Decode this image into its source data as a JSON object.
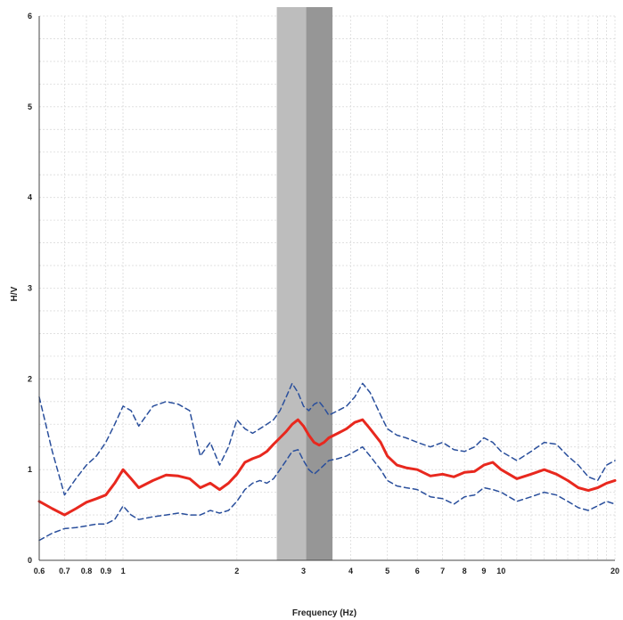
{
  "chart_data": {
    "type": "line",
    "xscale": "log",
    "xlabel": "Frequency (Hz)",
    "ylabel": "H/V",
    "xlim": [
      0.6,
      20
    ],
    "ylim": [
      0,
      6
    ],
    "grid": true,
    "xticks": [
      {
        "value": 0.6,
        "label": "0.6"
      },
      {
        "value": 0.7,
        "label": "0.7"
      },
      {
        "value": 0.8,
        "label": "0.8"
      },
      {
        "value": 0.9,
        "label": "0.9"
      },
      {
        "value": 1,
        "label": "1"
      },
      {
        "value": 2,
        "label": "2"
      },
      {
        "value": 3,
        "label": "3"
      },
      {
        "value": 4,
        "label": "4"
      },
      {
        "value": 5,
        "label": "5"
      },
      {
        "value": 6,
        "label": "6"
      },
      {
        "value": 7,
        "label": "7"
      },
      {
        "value": 8,
        "label": "8"
      },
      {
        "value": 9,
        "label": "9"
      },
      {
        "value": 10,
        "label": "10"
      },
      {
        "value": 20,
        "label": "20"
      }
    ],
    "yticks": [
      {
        "value": 0,
        "label": "0"
      },
      {
        "value": 1,
        "label": "1"
      },
      {
        "value": 2,
        "label": "2"
      },
      {
        "value": 3,
        "label": "3"
      },
      {
        "value": 4,
        "label": "4"
      },
      {
        "value": 5,
        "label": "5"
      },
      {
        "value": 6,
        "label": "6"
      }
    ],
    "bands": [
      {
        "x0": 2.55,
        "x1": 3.05,
        "color": "#bdbdbd"
      },
      {
        "x0": 3.05,
        "x1": 3.58,
        "color": "#969696"
      }
    ],
    "series": [
      {
        "style": "solid",
        "color": "#e8281e",
        "x": [
          0.6,
          0.65,
          0.7,
          0.75,
          0.8,
          0.85,
          0.9,
          0.95,
          1.0,
          1.05,
          1.1,
          1.2,
          1.3,
          1.4,
          1.5,
          1.6,
          1.7,
          1.8,
          1.9,
          2.0,
          2.1,
          2.2,
          2.3,
          2.4,
          2.5,
          2.6,
          2.7,
          2.8,
          2.9,
          3.0,
          3.1,
          3.2,
          3.3,
          3.4,
          3.5,
          3.7,
          3.9,
          4.1,
          4.3,
          4.5,
          4.8,
          5.0,
          5.3,
          5.6,
          6.0,
          6.5,
          7.0,
          7.5,
          8.0,
          8.5,
          9.0,
          9.5,
          10,
          11,
          12,
          13,
          14,
          15,
          16,
          17,
          18,
          19,
          20
        ],
        "y": [
          0.65,
          0.57,
          0.5,
          0.57,
          0.64,
          0.68,
          0.72,
          0.85,
          1.0,
          0.9,
          0.8,
          0.88,
          0.94,
          0.93,
          0.9,
          0.8,
          0.85,
          0.78,
          0.85,
          0.95,
          1.08,
          1.12,
          1.15,
          1.2,
          1.28,
          1.35,
          1.42,
          1.5,
          1.55,
          1.48,
          1.38,
          1.3,
          1.27,
          1.3,
          1.35,
          1.4,
          1.45,
          1.52,
          1.55,
          1.45,
          1.3,
          1.15,
          1.05,
          1.02,
          1.0,
          0.93,
          0.95,
          0.92,
          0.97,
          0.98,
          1.05,
          1.08,
          1.0,
          0.9,
          0.95,
          1.0,
          0.95,
          0.88,
          0.8,
          0.77,
          0.8,
          0.85,
          0.88
        ]
      },
      {
        "style": "dashed",
        "color": "#2a4f9c",
        "x": [
          0.6,
          0.65,
          0.7,
          0.75,
          0.8,
          0.85,
          0.9,
          0.95,
          1.0,
          1.05,
          1.1,
          1.2,
          1.3,
          1.4,
          1.5,
          1.6,
          1.7,
          1.8,
          1.9,
          2.0,
          2.1,
          2.2,
          2.3,
          2.4,
          2.5,
          2.6,
          2.7,
          2.8,
          2.9,
          3.0,
          3.1,
          3.2,
          3.3,
          3.4,
          3.5,
          3.7,
          3.9,
          4.1,
          4.3,
          4.5,
          4.8,
          5.0,
          5.3,
          5.6,
          6.0,
          6.5,
          7.0,
          7.5,
          8.0,
          8.5,
          9.0,
          9.5,
          10,
          11,
          12,
          13,
          14,
          15,
          16,
          17,
          18,
          19,
          20
        ],
        "y": [
          1.8,
          1.2,
          0.72,
          0.9,
          1.05,
          1.15,
          1.3,
          1.5,
          1.7,
          1.65,
          1.48,
          1.7,
          1.75,
          1.72,
          1.65,
          1.15,
          1.3,
          1.05,
          1.25,
          1.55,
          1.45,
          1.4,
          1.45,
          1.5,
          1.55,
          1.65,
          1.8,
          1.95,
          1.85,
          1.7,
          1.65,
          1.72,
          1.75,
          1.68,
          1.6,
          1.65,
          1.7,
          1.8,
          1.95,
          1.85,
          1.6,
          1.45,
          1.38,
          1.35,
          1.3,
          1.25,
          1.3,
          1.22,
          1.2,
          1.25,
          1.35,
          1.3,
          1.2,
          1.1,
          1.2,
          1.3,
          1.28,
          1.15,
          1.05,
          0.92,
          0.88,
          1.05,
          1.1
        ]
      },
      {
        "style": "dashed",
        "color": "#2a4f9c",
        "x": [
          0.6,
          0.65,
          0.7,
          0.75,
          0.8,
          0.85,
          0.9,
          0.95,
          1.0,
          1.05,
          1.1,
          1.2,
          1.3,
          1.4,
          1.5,
          1.6,
          1.7,
          1.8,
          1.9,
          2.0,
          2.1,
          2.2,
          2.3,
          2.4,
          2.5,
          2.6,
          2.7,
          2.8,
          2.9,
          3.0,
          3.1,
          3.2,
          3.3,
          3.4,
          3.5,
          3.7,
          3.9,
          4.1,
          4.3,
          4.5,
          4.8,
          5.0,
          5.3,
          5.6,
          6.0,
          6.5,
          7.0,
          7.5,
          8.0,
          8.5,
          9.0,
          9.5,
          10,
          11,
          12,
          13,
          14,
          15,
          16,
          17,
          18,
          19,
          20
        ],
        "y": [
          0.22,
          0.3,
          0.35,
          0.36,
          0.38,
          0.4,
          0.4,
          0.45,
          0.6,
          0.5,
          0.45,
          0.48,
          0.5,
          0.52,
          0.5,
          0.5,
          0.55,
          0.52,
          0.55,
          0.65,
          0.78,
          0.85,
          0.88,
          0.85,
          0.9,
          1.0,
          1.1,
          1.2,
          1.22,
          1.1,
          1.0,
          0.95,
          1.0,
          1.05,
          1.1,
          1.12,
          1.15,
          1.2,
          1.25,
          1.15,
          1.0,
          0.88,
          0.82,
          0.8,
          0.78,
          0.7,
          0.68,
          0.62,
          0.7,
          0.72,
          0.8,
          0.78,
          0.75,
          0.65,
          0.7,
          0.75,
          0.72,
          0.65,
          0.58,
          0.55,
          0.6,
          0.65,
          0.62
        ]
      }
    ]
  }
}
